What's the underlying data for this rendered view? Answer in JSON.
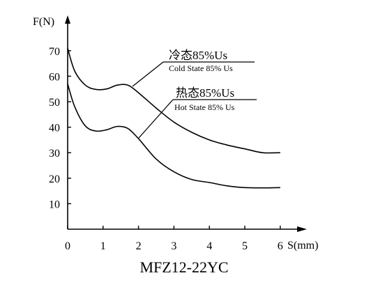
{
  "chart_data": {
    "type": "line",
    "title": "MFZ12-22YC",
    "xlabel": "S(mm)",
    "ylabel": "F(N)",
    "xlim": [
      0,
      6
    ],
    "ylim": [
      0,
      75
    ],
    "x_ticks": [
      "0",
      "1",
      "2",
      "3",
      "4",
      "5",
      "6"
    ],
    "y_ticks": [
      "10",
      "20",
      "30",
      "40",
      "50",
      "60",
      "70"
    ],
    "grid": false,
    "series": [
      {
        "name": "冷态85%Us",
        "name_en": "Cold State 85% Us",
        "color": "#000000",
        "points": [
          [
            0,
            71
          ],
          [
            0.2,
            62
          ],
          [
            0.5,
            56.5
          ],
          [
            0.8,
            54.8
          ],
          [
            1.1,
            55
          ],
          [
            1.4,
            56.5
          ],
          [
            1.7,
            56.5
          ],
          [
            2.0,
            53.5
          ],
          [
            2.5,
            47.5
          ],
          [
            3.0,
            42
          ],
          [
            3.5,
            38
          ],
          [
            4.0,
            35
          ],
          [
            4.5,
            33
          ],
          [
            5.0,
            31.5
          ],
          [
            5.5,
            30
          ],
          [
            6.0,
            30
          ]
        ]
      },
      {
        "name": "热态85%Us",
        "name_en": "Hot State 85% Us",
        "color": "#000000",
        "points": [
          [
            0,
            57
          ],
          [
            0.2,
            48
          ],
          [
            0.5,
            40.5
          ],
          [
            0.8,
            38.5
          ],
          [
            1.1,
            39
          ],
          [
            1.4,
            40.3
          ],
          [
            1.7,
            39.5
          ],
          [
            2.0,
            35.5
          ],
          [
            2.5,
            27.5
          ],
          [
            3.0,
            22.5
          ],
          [
            3.5,
            19.5
          ],
          [
            4.0,
            18.3
          ],
          [
            4.5,
            17
          ],
          [
            5.0,
            16.3
          ],
          [
            5.5,
            16.2
          ],
          [
            6.0,
            16.3
          ]
        ]
      }
    ]
  }
}
